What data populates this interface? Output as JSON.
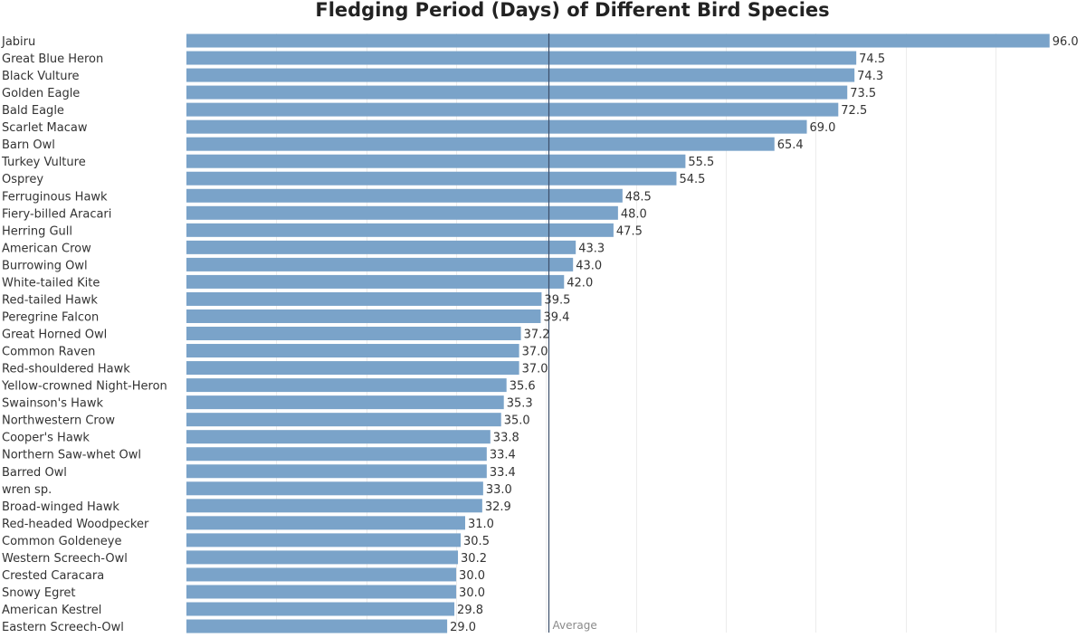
{
  "chart_data": {
    "type": "bar",
    "orientation": "horizontal",
    "title": "Fledging Period (Days) of Different Bird Species",
    "categories": [
      "Jabiru",
      "Great Blue Heron",
      "Black Vulture",
      "Golden Eagle",
      "Bald Eagle",
      "Scarlet Macaw",
      "Barn Owl",
      "Turkey Vulture",
      "Osprey",
      "Ferruginous Hawk",
      "Fiery-billed Aracari",
      "Herring Gull",
      "American Crow",
      "Burrowing Owl",
      "White-tailed Kite",
      "Red-tailed Hawk",
      "Peregrine Falcon",
      "Great Horned Owl",
      "Common Raven",
      "Red-shouldered Hawk",
      "Yellow-crowned Night-Heron",
      "Swainson's Hawk",
      "Northwestern Crow",
      "Cooper's Hawk",
      "Northern Saw-whet Owl",
      "Barred Owl",
      "wren sp.",
      "Broad-winged Hawk",
      "Red-headed Woodpecker",
      "Common Goldeneye",
      "Western Screech-Owl",
      "Crested Caracara",
      "Snowy Egret",
      "American Kestrel",
      "Eastern Screech-Owl"
    ],
    "values": [
      96.0,
      74.5,
      74.3,
      73.5,
      72.5,
      69.0,
      65.4,
      55.5,
      54.5,
      48.5,
      48.0,
      47.5,
      43.3,
      43.0,
      42.0,
      39.5,
      39.4,
      37.2,
      37.0,
      37.0,
      35.6,
      35.3,
      35.0,
      33.8,
      33.4,
      33.4,
      33.0,
      32.9,
      31.0,
      30.5,
      30.2,
      30.0,
      30.0,
      29.8,
      29.0
    ],
    "value_labels": [
      "96.0",
      "74.5",
      "74.3",
      "73.5",
      "72.5",
      "69.0",
      "65.4",
      "55.5",
      "54.5",
      "48.5",
      "48.0",
      "47.5",
      "43.3",
      "43.0",
      "42.0",
      "39.5",
      "39.4",
      "37.2",
      "37.0",
      "37.0",
      "35.6",
      "35.3",
      "35.0",
      "33.8",
      "33.4",
      "33.4",
      "33.0",
      "32.9",
      "31.0",
      "30.5",
      "30.2",
      "30.0",
      "30.0",
      "29.8",
      "29.0"
    ],
    "xlim": [
      0,
      100
    ],
    "grid": true,
    "bar_color": "#7aa3c9",
    "reference_line": {
      "label": "Average",
      "value": 40.3
    }
  }
}
